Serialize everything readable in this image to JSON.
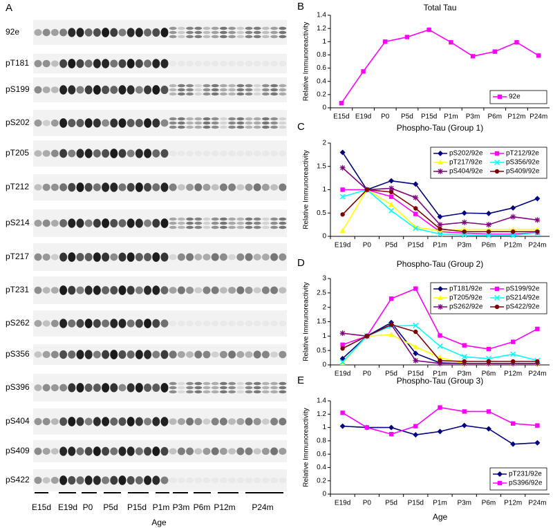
{
  "panels": [
    "A",
    "B",
    "C",
    "D",
    "E"
  ],
  "blot": {
    "rows": [
      "92e",
      "pT181",
      "pS199",
      "pS202",
      "pT205",
      "pT212",
      "pS214",
      "pT217",
      "pT231",
      "pS262",
      "pS356",
      "pS396",
      "pS404",
      "pS409",
      "pS422"
    ],
    "ages": [
      "E15d",
      "E19d",
      "P0",
      "P5d",
      "P15d",
      "P1m",
      "P3m",
      "P6m",
      "P12m",
      "P24m"
    ],
    "xlabel": "Age"
  },
  "chart_data": [
    {
      "type": "line",
      "title": "Total Tau",
      "ylabel": "Relative Immunoreactivity",
      "categories": [
        "E15d",
        "E19d",
        "P0",
        "P5d",
        "P15d",
        "P1m",
        "P3m",
        "P6m",
        "P12m",
        "P24m"
      ],
      "ylim": [
        0,
        1.4
      ],
      "yticks": [
        0,
        0.2,
        0.4,
        0.6,
        0.8,
        1,
        1.2,
        1.4
      ],
      "legend": "lower right",
      "series": [
        {
          "name": "92e",
          "color": "#ff00ff",
          "marker": "square",
          "values": [
            0.07,
            0.55,
            1.0,
            1.07,
            1.18,
            0.99,
            0.78,
            0.85,
            0.99,
            0.79
          ]
        }
      ]
    },
    {
      "type": "line",
      "title": "Phospho-Tau (Group 1)",
      "ylabel": "Relative Immunoreactivity",
      "categories": [
        "E19d",
        "P0",
        "P5d",
        "P15d",
        "P1m",
        "P3m",
        "P6m",
        "P12m",
        "P24m"
      ],
      "ylim": [
        0,
        2
      ],
      "yticks": [
        0,
        0.5,
        1,
        1.5,
        2
      ],
      "legend": "upper right",
      "series": [
        {
          "name": "pS202/92e",
          "color": "#000080",
          "marker": "diamond",
          "values": [
            1.8,
            1.0,
            1.19,
            1.12,
            0.42,
            0.5,
            0.49,
            0.61,
            0.81
          ]
        },
        {
          "name": "pT212/92e",
          "color": "#ff00ff",
          "marker": "square",
          "values": [
            1.0,
            1.0,
            0.85,
            0.48,
            0.1,
            0.07,
            0.05,
            0.05,
            0.08
          ]
        },
        {
          "name": "pT217/92e",
          "color": "#ffff00",
          "marker": "triangle",
          "values": [
            0.12,
            1.0,
            0.68,
            0.2,
            0.12,
            0.15,
            0.15,
            0.15,
            0.15
          ]
        },
        {
          "name": "pS356/92e",
          "color": "#00ffff",
          "marker": "x",
          "values": [
            0.85,
            1.0,
            0.55,
            0.17,
            0.05,
            0.03,
            0.02,
            0.02,
            0.08
          ]
        },
        {
          "name": "pS404/92e",
          "color": "#800080",
          "marker": "star",
          "values": [
            1.47,
            1.0,
            1.03,
            0.83,
            0.25,
            0.3,
            0.25,
            0.42,
            0.35
          ]
        },
        {
          "name": "pS409/92e",
          "color": "#800000",
          "marker": "circle",
          "values": [
            0.47,
            1.0,
            0.95,
            0.6,
            0.16,
            0.1,
            0.1,
            0.1,
            0.1
          ]
        }
      ]
    },
    {
      "type": "line",
      "title": "Phospho-Tau (Group 2)",
      "ylabel": "Relative Immunoreactivity",
      "categories": [
        "E19d",
        "P0",
        "P5d",
        "P15d",
        "P1m",
        "P3m",
        "P6m",
        "P12m",
        "P24m"
      ],
      "ylim": [
        0,
        3
      ],
      "yticks": [
        0,
        0.5,
        1,
        1.5,
        2,
        2.5,
        3
      ],
      "legend": "upper right",
      "series": [
        {
          "name": "pT181/92e",
          "color": "#000080",
          "marker": "diamond",
          "values": [
            0.22,
            1.0,
            1.47,
            0.4,
            0.07,
            0.05,
            0.05,
            0.05,
            0.05
          ]
        },
        {
          "name": "pS199/92e",
          "color": "#ff00ff",
          "marker": "square",
          "values": [
            0.7,
            1.0,
            2.3,
            2.65,
            1.02,
            0.68,
            0.55,
            0.8,
            1.25
          ]
        },
        {
          "name": "pT205/92e",
          "color": "#ffff00",
          "marker": "triangle",
          "values": [
            0.07,
            1.0,
            1.05,
            0.63,
            0.25,
            0.05,
            0.05,
            0.05,
            0.05
          ]
        },
        {
          "name": "pS214/92e",
          "color": "#00ffff",
          "marker": "x",
          "values": [
            0.1,
            1.0,
            1.35,
            1.37,
            0.65,
            0.28,
            0.22,
            0.37,
            0.15
          ]
        },
        {
          "name": "pS262/92e",
          "color": "#800080",
          "marker": "star",
          "values": [
            1.1,
            1.0,
            1.4,
            0.15,
            0.05,
            0.05,
            0.05,
            0.05,
            0.05
          ]
        },
        {
          "name": "pS422/92e",
          "color": "#800000",
          "marker": "circle",
          "values": [
            0.57,
            1.0,
            1.4,
            1.15,
            0.15,
            0.12,
            0.12,
            0.12,
            0.12
          ]
        }
      ]
    },
    {
      "type": "line",
      "title": "Phospho-Tau (Group 3)",
      "ylabel": "Relative Immunoreactivity",
      "xlabel": "Age",
      "categories": [
        "E19d",
        "P0",
        "P5d",
        "P15d",
        "P1m",
        "P3m",
        "P6m",
        "P12m",
        "P24m"
      ],
      "ylim": [
        0,
        1.4
      ],
      "yticks": [
        0,
        0.2,
        0.4,
        0.6,
        0.8,
        1,
        1.2,
        1.4
      ],
      "legend": "lower right",
      "series": [
        {
          "name": "pT231/92e",
          "color": "#000080",
          "marker": "diamond",
          "values": [
            1.02,
            1.0,
            1.0,
            0.89,
            0.94,
            1.03,
            0.98,
            0.75,
            0.77
          ]
        },
        {
          "name": "pS396/92e",
          "color": "#ff00ff",
          "marker": "square",
          "values": [
            1.22,
            1.0,
            0.9,
            1.02,
            1.3,
            1.24,
            1.24,
            1.06,
            1.03
          ]
        }
      ]
    }
  ]
}
